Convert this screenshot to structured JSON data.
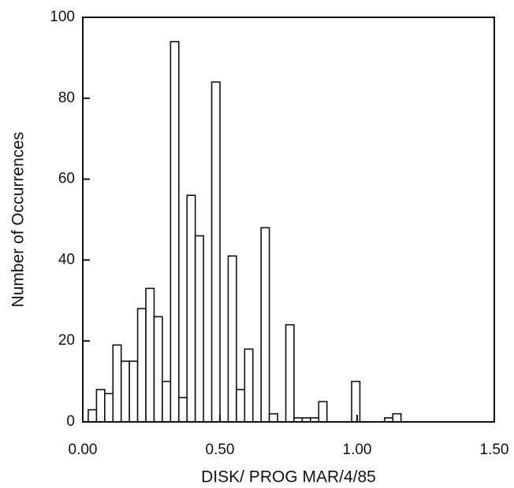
{
  "chart_data": {
    "type": "histogram",
    "xlabel": "DISK/ PROG MAR/4/85",
    "ylabel": "Number of Occurrences",
    "bins": [
      0.02,
      0.05,
      0.08,
      0.11,
      0.14,
      0.17,
      0.2,
      0.23,
      0.26,
      0.29,
      0.32,
      0.35,
      0.38,
      0.41,
      0.44,
      0.47,
      0.5,
      0.53,
      0.56,
      0.59,
      0.62,
      0.65,
      0.68,
      0.71,
      0.74,
      0.77,
      0.8,
      0.83,
      0.86,
      0.89,
      0.92,
      0.95,
      0.98,
      1.01,
      1.04,
      1.07,
      1.1,
      1.13,
      1.16
    ],
    "values": [
      3,
      8,
      7,
      19,
      15,
      15,
      28,
      33,
      26,
      10,
      94,
      6,
      56,
      46,
      0,
      84,
      0,
      41,
      8,
      18,
      0,
      48,
      2,
      0,
      24,
      1,
      1,
      1,
      5,
      0,
      0,
      0,
      10,
      0,
      0,
      0,
      1,
      2
    ],
    "color": "#ffffff",
    "xlim": [
      0,
      1.5
    ],
    "xticks": [
      {
        "value": 0,
        "label": "0.00"
      },
      {
        "value": 0.5,
        "label": "0.50"
      },
      {
        "value": 1,
        "label": "1.00"
      },
      {
        "value": 1.5,
        "label": "1.50"
      }
    ],
    "ylim": [
      0,
      100
    ],
    "yticks": [
      0,
      20,
      40,
      60,
      80,
      100
    ],
    "grid": false
  }
}
